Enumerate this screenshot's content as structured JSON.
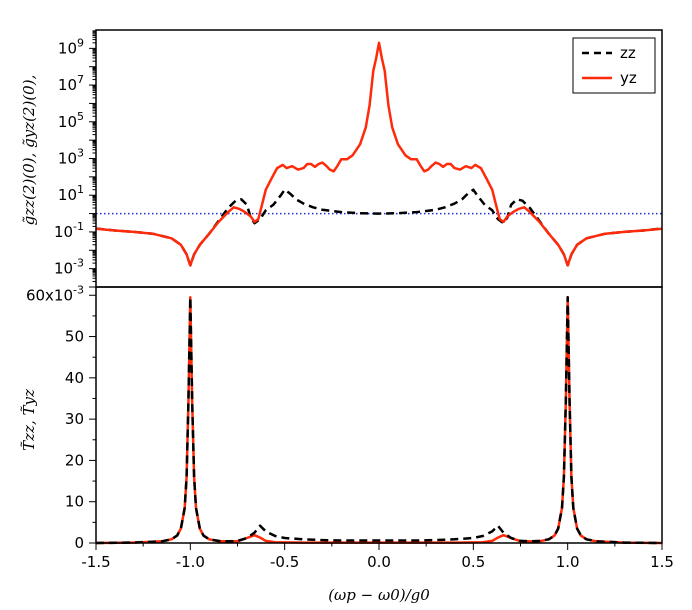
{
  "chart_data": [
    {
      "type": "line",
      "panel": "top",
      "ylabel": "g̃zz(2)(0), g̃yz(2)(0),",
      "yscale": "log",
      "ylim": [
        0.0001,
        10000000000
      ],
      "xlim": [
        -1.5,
        1.5
      ],
      "ytick_labels": [
        {
          "base": "10",
          "exp": "9",
          "v": 1000000000.0
        },
        {
          "base": "10",
          "exp": "7",
          "v": 10000000.0
        },
        {
          "base": "10",
          "exp": "5",
          "v": 100000.0
        },
        {
          "base": "10",
          "exp": "3",
          "v": 1000.0
        },
        {
          "base": "10",
          "exp": "1",
          "v": 10
        },
        {
          "base": "10",
          "exp": "-1",
          "v": 0.1
        },
        {
          "base": "10",
          "exp": "-3",
          "v": 0.001
        }
      ],
      "reference_line": {
        "y": 1,
        "color": "#1f2fd6",
        "style": "dotted"
      },
      "legend": {
        "position": "top-right",
        "entries": [
          {
            "label": "zz",
            "color": "#000000",
            "style": "dashed"
          },
          {
            "label": "yz",
            "color": "#ff2a0a",
            "style": "solid"
          }
        ]
      },
      "series": [
        {
          "name": "zz",
          "color": "#000000",
          "style": "dashed",
          "x": [
            -1.5,
            -1.49,
            -1.4,
            -1.3,
            -1.2,
            -1.1,
            -1.05,
            -1.02,
            -1.0,
            -0.98,
            -0.95,
            -0.9,
            -0.85,
            -0.8,
            -0.76,
            -0.73,
            -0.7,
            -0.68,
            -0.66,
            -0.63,
            -0.6,
            -0.56,
            -0.52,
            -0.5,
            -0.47,
            -0.44,
            -0.4,
            -0.35,
            -0.3,
            -0.2,
            -0.1,
            0.0,
            0.1,
            0.2,
            0.3,
            0.35,
            0.4,
            0.44,
            0.47,
            0.5,
            0.52,
            0.56,
            0.6,
            0.63,
            0.66,
            0.68,
            0.7,
            0.73,
            0.76,
            0.8,
            0.85,
            0.9,
            0.95,
            0.98,
            1.0,
            1.02,
            1.05,
            1.1,
            1.2,
            1.3,
            1.4,
            1.49,
            1.5
          ],
          "y": [
            0.15,
            0.15,
            0.12,
            0.1,
            0.08,
            0.045,
            0.02,
            0.006,
            0.0015,
            0.006,
            0.02,
            0.08,
            0.4,
            2,
            5,
            6,
            3,
            0.6,
            0.3,
            0.5,
            1.5,
            3,
            10,
            20,
            12,
            6,
            3.5,
            2.2,
            1.6,
            1.2,
            1.05,
            1,
            1.05,
            1.2,
            1.6,
            2.2,
            3.5,
            6,
            12,
            20,
            10,
            3,
            1.5,
            0.5,
            0.3,
            0.6,
            3,
            6,
            5,
            2,
            0.4,
            0.08,
            0.02,
            0.006,
            0.0015,
            0.006,
            0.02,
            0.045,
            0.08,
            0.1,
            0.12,
            0.15,
            0.15
          ]
        },
        {
          "name": "yz",
          "color": "#ff2a0a",
          "style": "solid",
          "x": [
            -1.5,
            -1.4,
            -1.3,
            -1.2,
            -1.1,
            -1.05,
            -1.02,
            -1.0,
            -0.98,
            -0.95,
            -0.9,
            -0.85,
            -0.8,
            -0.77,
            -0.74,
            -0.71,
            -0.68,
            -0.66,
            -0.64,
            -0.62,
            -0.6,
            -0.57,
            -0.54,
            -0.51,
            -0.49,
            -0.46,
            -0.43,
            -0.4,
            -0.38,
            -0.36,
            -0.34,
            -0.32,
            -0.3,
            -0.28,
            -0.26,
            -0.24,
            -0.22,
            -0.2,
            -0.17,
            -0.14,
            -0.1,
            -0.07,
            -0.05,
            -0.03,
            -0.015,
            0.0,
            0.015,
            0.03,
            0.05,
            0.07,
            0.1,
            0.14,
            0.17,
            0.2,
            0.22,
            0.24,
            0.26,
            0.28,
            0.3,
            0.32,
            0.34,
            0.36,
            0.38,
            0.4,
            0.43,
            0.46,
            0.49,
            0.51,
            0.54,
            0.57,
            0.6,
            0.62,
            0.64,
            0.66,
            0.68,
            0.71,
            0.74,
            0.77,
            0.8,
            0.85,
            0.9,
            0.95,
            0.98,
            1.0,
            1.02,
            1.05,
            1.1,
            1.2,
            1.3,
            1.4,
            1.5
          ],
          "y": [
            0.15,
            0.12,
            0.1,
            0.08,
            0.045,
            0.02,
            0.006,
            0.0015,
            0.006,
            0.02,
            0.08,
            0.35,
            1.2,
            2.2,
            1.8,
            1.2,
            0.7,
            0.35,
            0.5,
            3,
            20,
            80,
            300,
            450,
            300,
            380,
            250,
            300,
            500,
            500,
            350,
            500,
            600,
            400,
            250,
            200,
            400,
            900,
            900,
            1500,
            6000,
            50000,
            800000,
            60000000,
            300000000,
            2000000000,
            300000000,
            60000000,
            800000,
            50000,
            6000,
            1500,
            900,
            900,
            400,
            200,
            250,
            400,
            600,
            500,
            350,
            500,
            500,
            300,
            250,
            380,
            300,
            450,
            300,
            80,
            20,
            3,
            0.5,
            0.35,
            0.7,
            1.2,
            1.8,
            2.2,
            1.2,
            0.35,
            0.08,
            0.02,
            0.006,
            0.0015,
            0.006,
            0.02,
            0.045,
            0.08,
            0.1,
            0.12,
            0.15
          ]
        }
      ]
    },
    {
      "type": "line",
      "panel": "bottom",
      "ylabel": "T̃zz, T̃yz",
      "xlabel": "(ωp − ω0)/g0",
      "ylim": [
        0,
        0.062
      ],
      "xlim": [
        -1.5,
        1.5
      ],
      "xtick_labels": [
        "-1.5",
        "-1.0",
        "-0.5",
        "0.0",
        "0.5",
        "1.0",
        "1.5"
      ],
      "ytick_labels": [
        "0",
        "10",
        "20",
        "30",
        "40",
        "50",
        "60x10"
      ],
      "ytick_exponent": "-3",
      "series": [
        {
          "name": "yz",
          "color": "#ff2a0a",
          "style": "solid",
          "x": [
            -1.5,
            -1.3,
            -1.15,
            -1.1,
            -1.07,
            -1.05,
            -1.03,
            -1.02,
            -1.01,
            -1.0,
            -0.99,
            -0.98,
            -0.97,
            -0.95,
            -0.93,
            -0.9,
            -0.85,
            -0.75,
            -0.7,
            -0.66,
            -0.63,
            -0.6,
            -0.55,
            -0.4,
            -0.2,
            0.0,
            0.2,
            0.4,
            0.55,
            0.6,
            0.63,
            0.66,
            0.7,
            0.75,
            0.85,
            0.9,
            0.93,
            0.95,
            0.97,
            0.98,
            0.99,
            1.0,
            1.01,
            1.02,
            1.03,
            1.05,
            1.07,
            1.1,
            1.15,
            1.3,
            1.5
          ],
          "y": [
            0.0,
            0.0001,
            0.0004,
            0.0009,
            0.0018,
            0.0035,
            0.0085,
            0.016,
            0.034,
            0.0595,
            0.034,
            0.016,
            0.0085,
            0.0035,
            0.0018,
            0.0009,
            0.0004,
            0.0004,
            0.0012,
            0.0019,
            0.0013,
            0.0005,
            0.0002,
            0.0001,
            0.0001,
            0.0001,
            0.0001,
            0.0001,
            0.0002,
            0.0005,
            0.0013,
            0.0019,
            0.0012,
            0.0004,
            0.0004,
            0.0009,
            0.0018,
            0.0035,
            0.0085,
            0.016,
            0.034,
            0.0595,
            0.034,
            0.016,
            0.0085,
            0.0035,
            0.0018,
            0.0009,
            0.0004,
            0.0001,
            0.0
          ]
        },
        {
          "name": "zz",
          "color": "#000000",
          "style": "dashed",
          "x": [
            -1.5,
            -1.3,
            -1.15,
            -1.1,
            -1.07,
            -1.05,
            -1.03,
            -1.02,
            -1.01,
            -1.0,
            -0.99,
            -0.98,
            -0.97,
            -0.95,
            -0.93,
            -0.9,
            -0.85,
            -0.8,
            -0.75,
            -0.7,
            -0.66,
            -0.63,
            -0.6,
            -0.55,
            -0.5,
            -0.4,
            -0.3,
            -0.2,
            -0.1,
            0.0,
            0.1,
            0.2,
            0.3,
            0.4,
            0.5,
            0.55,
            0.6,
            0.63,
            0.66,
            0.7,
            0.75,
            0.8,
            0.85,
            0.9,
            0.93,
            0.95,
            0.97,
            0.98,
            0.99,
            1.0,
            1.01,
            1.02,
            1.03,
            1.05,
            1.07,
            1.1,
            1.15,
            1.3,
            1.5
          ],
          "y": [
            0.0,
            0.0001,
            0.0004,
            0.0009,
            0.0018,
            0.0035,
            0.0085,
            0.016,
            0.034,
            0.0595,
            0.034,
            0.016,
            0.0085,
            0.0035,
            0.0018,
            0.0009,
            0.0005,
            0.0004,
            0.0005,
            0.0012,
            0.0025,
            0.0042,
            0.0028,
            0.0017,
            0.0012,
            0.0009,
            0.0007,
            0.0006,
            0.0006,
            0.0006,
            0.0006,
            0.0006,
            0.0007,
            0.0009,
            0.0012,
            0.0017,
            0.0028,
            0.0042,
            0.0025,
            0.0012,
            0.0005,
            0.0004,
            0.0005,
            0.0009,
            0.0018,
            0.0035,
            0.0085,
            0.016,
            0.034,
            0.0595,
            0.034,
            0.016,
            0.0085,
            0.0035,
            0.0018,
            0.0009,
            0.0004,
            0.0001,
            0.0
          ]
        }
      ]
    }
  ]
}
